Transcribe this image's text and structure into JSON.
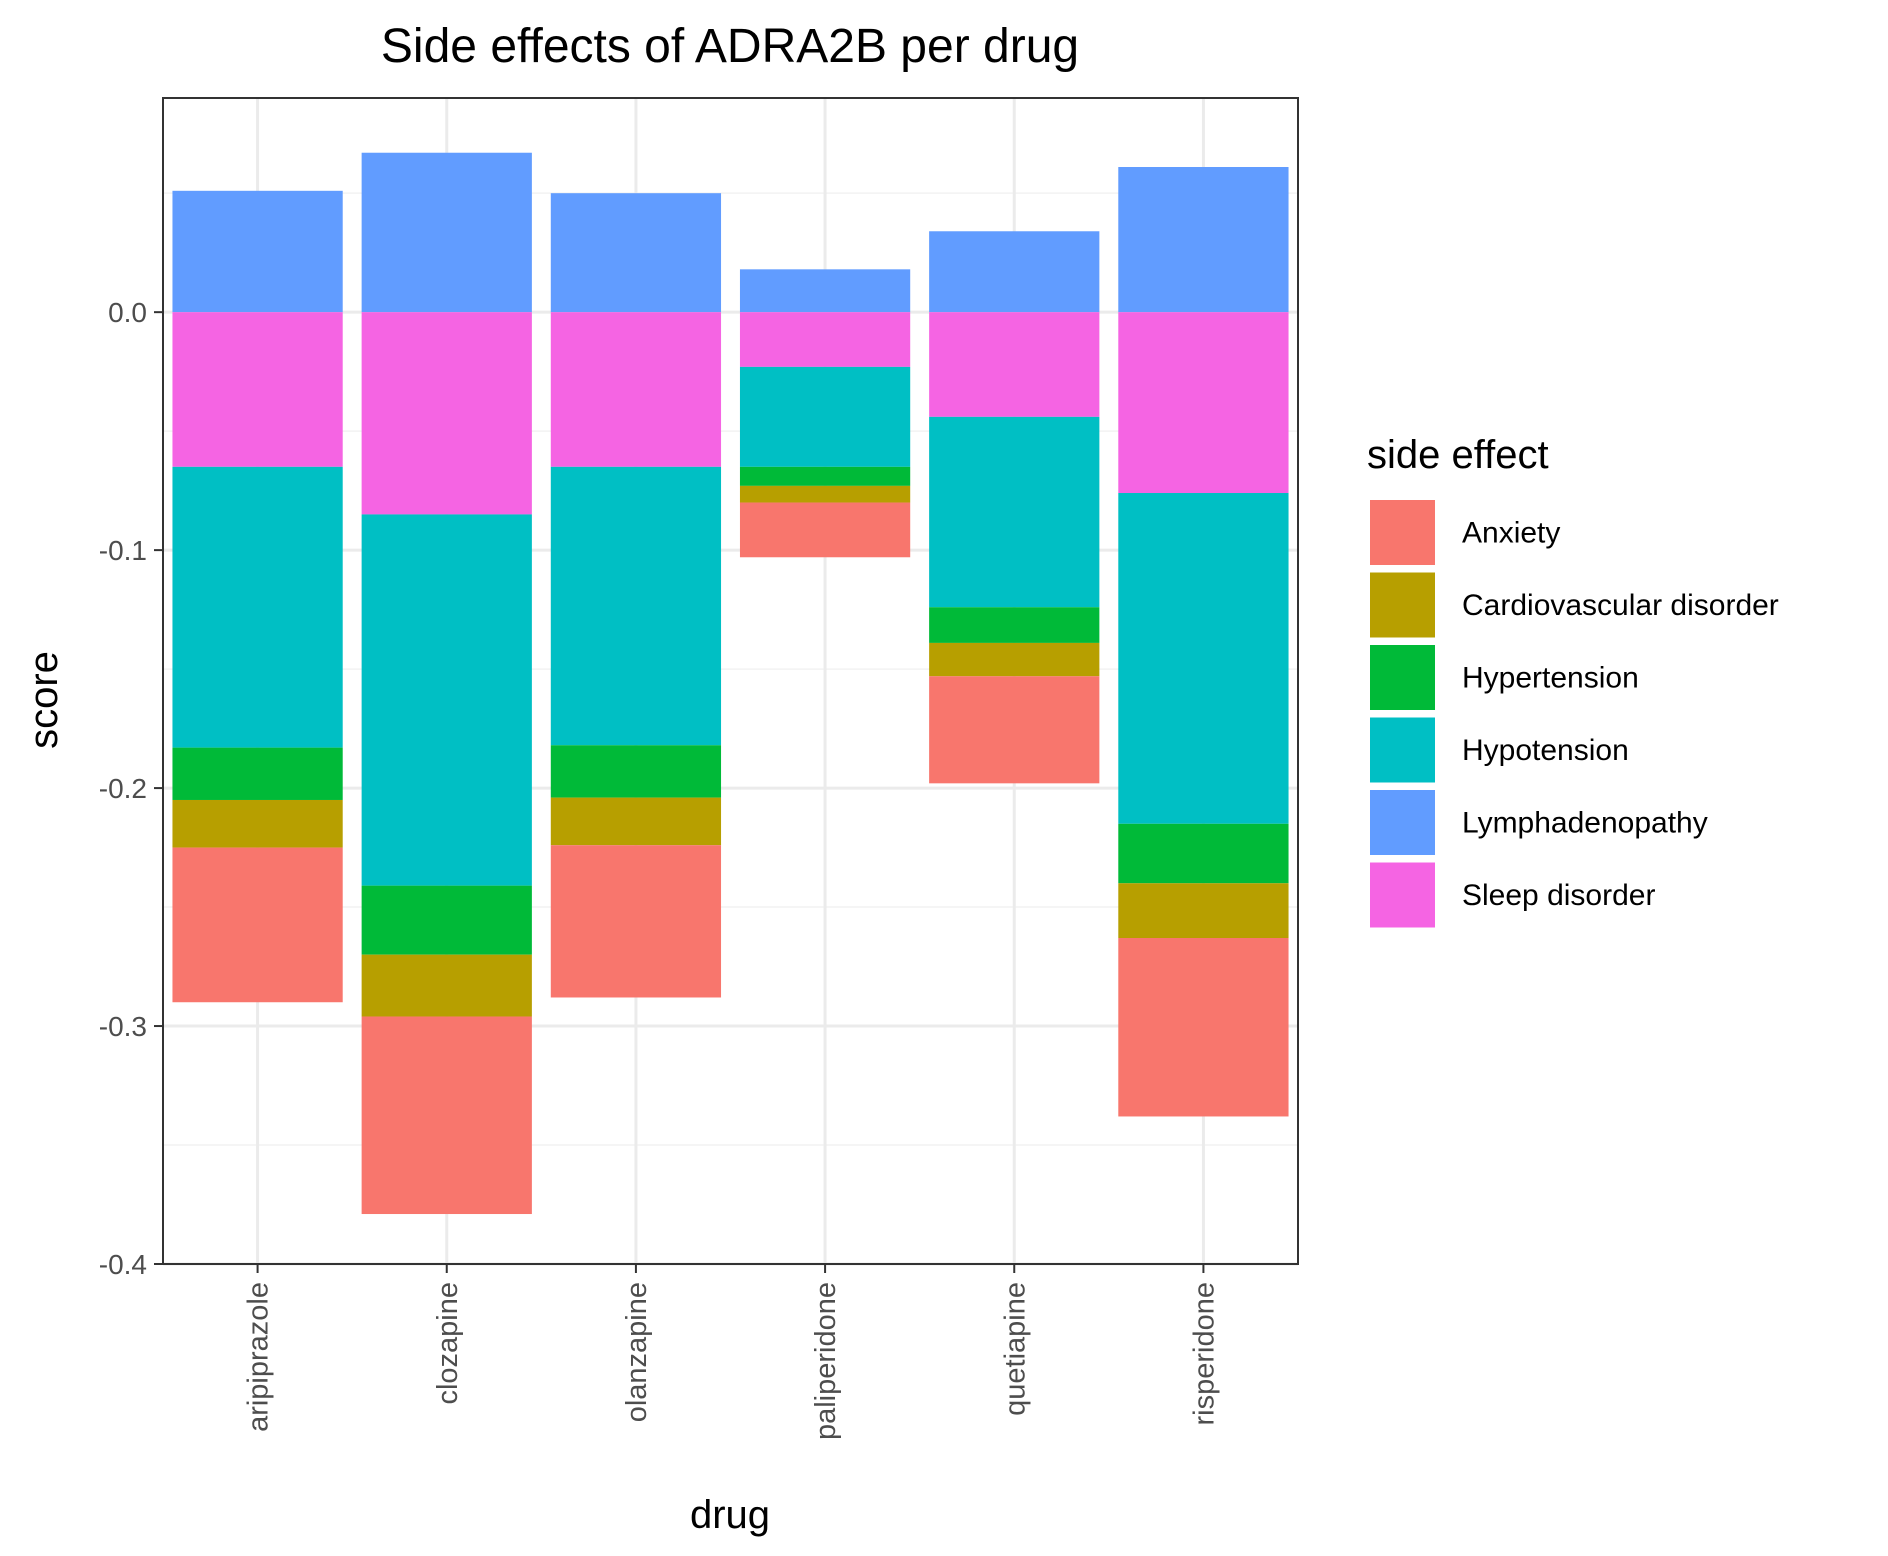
{
  "chart_data": {
    "type": "bar",
    "stacked": true,
    "title": "Side effects of ADRA2B per drug",
    "xlabel": "drug",
    "ylabel": "score",
    "ylim": [
      -0.4,
      0.09
    ],
    "yticks": [
      0.0,
      -0.1,
      -0.2,
      -0.3,
      -0.4
    ],
    "ytick_labels": [
      "0.0",
      "-0.1",
      "-0.2",
      "-0.3",
      "-0.4"
    ],
    "grid": true,
    "legend": {
      "title": "side effect",
      "position": "right"
    },
    "categories": [
      "aripiprazole",
      "clozapine",
      "olanzapine",
      "paliperidone",
      "quetiapine",
      "risperidone"
    ],
    "stack_order_negative": [
      "Sleep disorder",
      "Hypotension",
      "Hypertension",
      "Cardiovascular disorder",
      "Anxiety"
    ],
    "series": [
      {
        "name": "Anxiety",
        "color": "#F8766D",
        "values": [
          -0.065,
          -0.083,
          -0.064,
          -0.023,
          -0.045,
          -0.075
        ]
      },
      {
        "name": "Cardiovascular disorder",
        "color": "#B79F00",
        "values": [
          -0.02,
          -0.026,
          -0.02,
          -0.007,
          -0.014,
          -0.023
        ]
      },
      {
        "name": "Hypertension",
        "color": "#00BA38",
        "values": [
          -0.022,
          -0.029,
          -0.022,
          -0.008,
          -0.015,
          -0.025
        ]
      },
      {
        "name": "Hypotension",
        "color": "#00BFC4",
        "values": [
          -0.118,
          -0.156,
          -0.117,
          -0.042,
          -0.08,
          -0.139
        ]
      },
      {
        "name": "Lymphadenopathy",
        "color": "#619CFF",
        "values": [
          0.051,
          0.067,
          0.05,
          0.018,
          0.034,
          0.061
        ]
      },
      {
        "name": "Sleep disorder",
        "color": "#F564E3",
        "values": [
          -0.065,
          -0.085,
          -0.065,
          -0.023,
          -0.044,
          -0.076
        ]
      }
    ]
  }
}
